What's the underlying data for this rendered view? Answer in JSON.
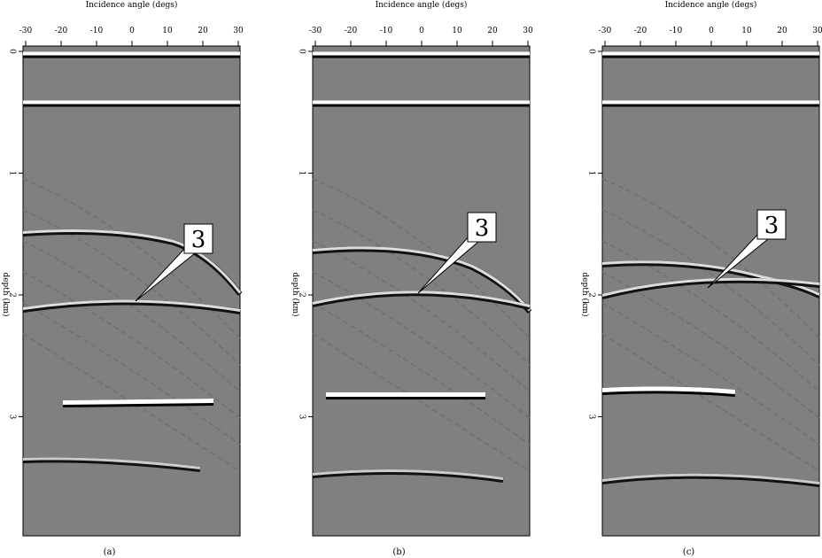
{
  "figure": {
    "panels": [
      {
        "caption": "(a)",
        "xlabel": "Incidence angle (degs)",
        "ylabel": "depth (km)",
        "callout": "3"
      },
      {
        "caption": "(b)",
        "xlabel": "Incidence angle (degs)",
        "ylabel": "depth (km)",
        "callout": "3"
      },
      {
        "caption": "(c)",
        "xlabel": "Incidence angle (degs)",
        "ylabel": "depth (km)",
        "callout": "3"
      }
    ],
    "x_ticks": [
      "-30",
      "-20",
      "-10",
      "0",
      "10",
      "20",
      "30"
    ],
    "y_ticks": [
      "0",
      "1",
      "2",
      "3"
    ],
    "x_range_degs": [
      -30,
      30
    ],
    "y_range_km": [
      0,
      4
    ],
    "colormap": "grayscale",
    "background_color": "#808080"
  }
}
